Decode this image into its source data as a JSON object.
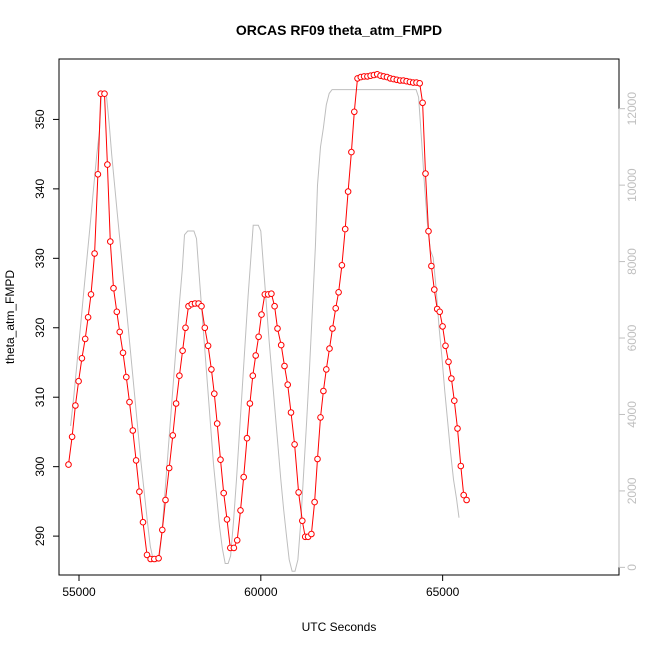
{
  "chart_data": {
    "type": "line",
    "title": "ORCAS RF09 theta_atm_FMPD",
    "xlabel": "UTC Seconds",
    "ylabel": "theta_atm_FMPD",
    "ylabel_right": "",
    "xlim": [
      54450,
      69850
    ],
    "ylim": [
      284.4,
      358.7
    ],
    "y2lim": [
      -200,
      13300
    ],
    "xticks": [
      55000,
      60000,
      65000
    ],
    "yticks": [
      290,
      300,
      310,
      320,
      330,
      340,
      350
    ],
    "y2ticks": [
      0,
      2000,
      4000,
      6000,
      8000,
      10000,
      12000
    ],
    "grid": false,
    "legend": "none",
    "colors": {
      "primary": "#ff0000",
      "secondary": "#bebebe",
      "axis": "#000000",
      "secondary_axis": "#bfbfbf"
    },
    "series": [
      {
        "color": "#ff0000",
        "style": "line+points",
        "axis": "left",
        "points": [
          [
            54710,
            300.3
          ],
          [
            54810,
            304.3
          ],
          [
            54900,
            308.8
          ],
          [
            54990,
            312.3
          ],
          [
            55080,
            315.6
          ],
          [
            55170,
            318.4
          ],
          [
            55250,
            321.5
          ],
          [
            55330,
            324.8
          ],
          [
            55430,
            330.7
          ],
          [
            55520,
            342.1
          ],
          [
            55600,
            353.7
          ],
          [
            55700,
            353.7
          ],
          [
            55780,
            343.5
          ],
          [
            55860,
            332.4
          ],
          [
            55950,
            325.7
          ],
          [
            56040,
            322.3
          ],
          [
            56120,
            319.4
          ],
          [
            56210,
            316.4
          ],
          [
            56300,
            312.9
          ],
          [
            56390,
            309.3
          ],
          [
            56480,
            305.2
          ],
          [
            56570,
            300.9
          ],
          [
            56660,
            296.4
          ],
          [
            56760,
            292.0
          ],
          [
            56870,
            287.3
          ],
          [
            56970,
            286.7
          ],
          [
            57070,
            286.7
          ],
          [
            57190,
            286.8
          ],
          [
            57290,
            290.9
          ],
          [
            57380,
            295.2
          ],
          [
            57480,
            299.8
          ],
          [
            57580,
            304.5
          ],
          [
            57670,
            309.1
          ],
          [
            57760,
            313.1
          ],
          [
            57850,
            316.7
          ],
          [
            57930,
            320.0
          ],
          [
            58010,
            323.1
          ],
          [
            58100,
            323.4
          ],
          [
            58190,
            323.5
          ],
          [
            58290,
            323.5
          ],
          [
            58370,
            323.1
          ],
          [
            58460,
            320.0
          ],
          [
            58550,
            317.4
          ],
          [
            58640,
            314.0
          ],
          [
            58720,
            310.5
          ],
          [
            58800,
            306.2
          ],
          [
            58890,
            301.0
          ],
          [
            58980,
            296.2
          ],
          [
            59070,
            292.4
          ],
          [
            59160,
            288.3
          ],
          [
            59260,
            288.3
          ],
          [
            59350,
            289.4
          ],
          [
            59440,
            293.7
          ],
          [
            59530,
            298.5
          ],
          [
            59620,
            304.1
          ],
          [
            59700,
            309.1
          ],
          [
            59780,
            313.1
          ],
          [
            59860,
            316.0
          ],
          [
            59940,
            318.7
          ],
          [
            60020,
            321.9
          ],
          [
            60110,
            324.8
          ],
          [
            60200,
            324.8
          ],
          [
            60290,
            324.9
          ],
          [
            60380,
            323.1
          ],
          [
            60460,
            319.9
          ],
          [
            60560,
            317.5
          ],
          [
            60650,
            314.5
          ],
          [
            60740,
            311.8
          ],
          [
            60830,
            307.8
          ],
          [
            60930,
            303.2
          ],
          [
            61040,
            296.3
          ],
          [
            61140,
            292.2
          ],
          [
            61220,
            289.9
          ],
          [
            61300,
            289.9
          ],
          [
            61390,
            290.3
          ],
          [
            61480,
            294.9
          ],
          [
            61560,
            301.1
          ],
          [
            61640,
            307.1
          ],
          [
            61720,
            310.9
          ],
          [
            61800,
            314.0
          ],
          [
            61890,
            317.0
          ],
          [
            61970,
            319.9
          ],
          [
            62060,
            322.8
          ],
          [
            62140,
            325.1
          ],
          [
            62230,
            329.0
          ],
          [
            62320,
            334.2
          ],
          [
            62400,
            339.6
          ],
          [
            62490,
            345.3
          ],
          [
            62570,
            351.1
          ],
          [
            62660,
            355.9
          ],
          [
            62750,
            356.1
          ],
          [
            62840,
            356.2
          ],
          [
            62930,
            356.2
          ],
          [
            63020,
            356.3
          ],
          [
            63110,
            356.4
          ],
          [
            63200,
            356.5
          ],
          [
            63290,
            356.3
          ],
          [
            63380,
            356.2
          ],
          [
            63470,
            356.1
          ],
          [
            63560,
            355.9
          ],
          [
            63650,
            355.8
          ],
          [
            63740,
            355.7
          ],
          [
            63830,
            355.6
          ],
          [
            63920,
            355.6
          ],
          [
            64010,
            355.5
          ],
          [
            64100,
            355.4
          ],
          [
            64190,
            355.3
          ],
          [
            64280,
            355.3
          ],
          [
            64370,
            355.2
          ],
          [
            64450,
            352.4
          ],
          [
            64530,
            342.2
          ],
          [
            64610,
            333.9
          ],
          [
            64690,
            328.9
          ],
          [
            64770,
            325.5
          ],
          [
            64850,
            322.7
          ],
          [
            64920,
            322.3
          ],
          [
            65000,
            320.2
          ],
          [
            65080,
            317.4
          ],
          [
            65160,
            315.1
          ],
          [
            65240,
            312.7
          ],
          [
            65320,
            309.5
          ],
          [
            65410,
            305.5
          ],
          [
            65500,
            300.1
          ],
          [
            65580,
            295.9
          ],
          [
            65660,
            295.2
          ]
        ]
      },
      {
        "color": "#bebebe",
        "style": "line",
        "axis": "right",
        "points": [
          [
            54770,
            3700
          ],
          [
            54860,
            4500
          ],
          [
            54950,
            5400
          ],
          [
            55040,
            6300
          ],
          [
            55130,
            7200
          ],
          [
            55220,
            8100
          ],
          [
            55310,
            9000
          ],
          [
            55400,
            9900
          ],
          [
            55490,
            10800
          ],
          [
            55560,
            11400
          ],
          [
            55620,
            12400
          ],
          [
            55700,
            12400
          ],
          [
            55760,
            12300
          ],
          [
            55830,
            11600
          ],
          [
            55900,
            10800
          ],
          [
            55980,
            10000
          ],
          [
            56060,
            9200
          ],
          [
            56140,
            8400
          ],
          [
            56220,
            7600
          ],
          [
            56300,
            6800
          ],
          [
            56380,
            6000
          ],
          [
            56460,
            5200
          ],
          [
            56540,
            4400
          ],
          [
            56620,
            3600
          ],
          [
            56700,
            2800
          ],
          [
            56790,
            2000
          ],
          [
            56880,
            1200
          ],
          [
            56960,
            550
          ],
          [
            57040,
            200
          ],
          [
            57120,
            150
          ],
          [
            57200,
            200
          ],
          [
            57280,
            900
          ],
          [
            57360,
            1900
          ],
          [
            57440,
            2900
          ],
          [
            57520,
            3900
          ],
          [
            57600,
            4900
          ],
          [
            57680,
            5900
          ],
          [
            57760,
            6900
          ],
          [
            57840,
            7800
          ],
          [
            57900,
            8700
          ],
          [
            57990,
            8800
          ],
          [
            58080,
            8800
          ],
          [
            58160,
            8800
          ],
          [
            58230,
            8600
          ],
          [
            58300,
            7700
          ],
          [
            58380,
            6700
          ],
          [
            58460,
            5700
          ],
          [
            58540,
            4700
          ],
          [
            58620,
            3700
          ],
          [
            58700,
            2700
          ],
          [
            58780,
            1900
          ],
          [
            58860,
            1100
          ],
          [
            58940,
            500
          ],
          [
            59020,
            100
          ],
          [
            59100,
            100
          ],
          [
            59170,
            300
          ],
          [
            59250,
            1200
          ],
          [
            59330,
            2300
          ],
          [
            59410,
            3500
          ],
          [
            59490,
            4700
          ],
          [
            59570,
            5900
          ],
          [
            59650,
            7100
          ],
          [
            59720,
            8000
          ],
          [
            59790,
            8950
          ],
          [
            59860,
            8950
          ],
          [
            59930,
            8950
          ],
          [
            60000,
            8800
          ],
          [
            60070,
            7900
          ],
          [
            60150,
            6900
          ],
          [
            60230,
            5900
          ],
          [
            60310,
            5000
          ],
          [
            60390,
            4100
          ],
          [
            60470,
            3200
          ],
          [
            60550,
            2300
          ],
          [
            60630,
            1500
          ],
          [
            60710,
            800
          ],
          [
            60780,
            200
          ],
          [
            60860,
            -100
          ],
          [
            60940,
            -100
          ],
          [
            61020,
            200
          ],
          [
            61100,
            1200
          ],
          [
            61180,
            2500
          ],
          [
            61260,
            3800
          ],
          [
            61340,
            5200
          ],
          [
            61420,
            6800
          ],
          [
            61500,
            8400
          ],
          [
            61560,
            10000
          ],
          [
            61640,
            11000
          ],
          [
            61720,
            11500
          ],
          [
            61800,
            12100
          ],
          [
            61880,
            12400
          ],
          [
            61960,
            12500
          ],
          [
            62040,
            12500
          ],
          [
            62120,
            12500
          ],
          [
            62200,
            12500
          ],
          [
            62280,
            12500
          ],
          [
            62360,
            12500
          ],
          [
            62440,
            12500
          ],
          [
            62520,
            12500
          ],
          [
            62600,
            12500
          ],
          [
            62680,
            12500
          ],
          [
            62760,
            12500
          ],
          [
            62840,
            12500
          ],
          [
            62920,
            12500
          ],
          [
            63000,
            12500
          ],
          [
            63080,
            12500
          ],
          [
            63160,
            12500
          ],
          [
            63240,
            12500
          ],
          [
            63320,
            12500
          ],
          [
            63400,
            12500
          ],
          [
            63480,
            12500
          ],
          [
            63560,
            12500
          ],
          [
            63640,
            12500
          ],
          [
            63720,
            12500
          ],
          [
            63800,
            12500
          ],
          [
            63880,
            12500
          ],
          [
            63960,
            12500
          ],
          [
            64040,
            12500
          ],
          [
            64120,
            12500
          ],
          [
            64200,
            12500
          ],
          [
            64270,
            12500
          ],
          [
            64340,
            12300
          ],
          [
            64420,
            11200
          ],
          [
            64500,
            10000
          ],
          [
            64580,
            9000
          ],
          [
            64660,
            8300
          ],
          [
            64740,
            8100
          ],
          [
            64820,
            7300
          ],
          [
            64900,
            6300
          ],
          [
            64980,
            5500
          ],
          [
            65060,
            4600
          ],
          [
            65140,
            3800
          ],
          [
            65220,
            3000
          ],
          [
            65300,
            2300
          ],
          [
            65380,
            1800
          ],
          [
            65450,
            1300
          ]
        ]
      }
    ]
  }
}
